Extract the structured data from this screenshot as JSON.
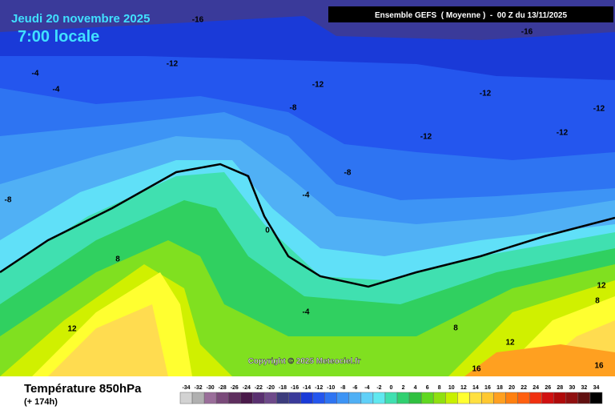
{
  "header": {
    "date": "Jeudi 20 novembre 2025",
    "time": "7:00 locale",
    "model": "Ensemble GEFS  ( Moyenne )  -  00 Z du 13/11/2025"
  },
  "copyright": "Copyright © 2025 Meteociel.fr",
  "contour_labels": [
    -16,
    -16,
    -12,
    -4,
    -4,
    -12,
    -12,
    -12,
    -8,
    -12,
    -12,
    -8,
    -4,
    -8,
    0,
    8,
    -4,
    12,
    8,
    12,
    8,
    12,
    16,
    16
  ],
  "footer": {
    "variable": "Température 850hPa",
    "lead": "(+ 174h)"
  },
  "legend": {
    "values": [
      -34,
      -32,
      -30,
      -28,
      -26,
      -24,
      -22,
      -20,
      -18,
      -16,
      -14,
      -12,
      -10,
      -8,
      -6,
      -4,
      -2,
      0,
      2,
      4,
      6,
      8,
      10,
      12,
      14,
      16,
      18,
      20,
      22,
      24,
      26,
      28,
      30,
      32,
      34
    ],
    "colors": [
      "#d2d2d2",
      "#b0b0b0",
      "#9a6e9a",
      "#7a4a7a",
      "#5e2e5e",
      "#4a1a4a",
      "#5a3070",
      "#6e4a8a",
      "#3c3c7c",
      "#3a3a9a",
      "#1a3ad8",
      "#2456ee",
      "#2e74f2",
      "#3d94f5",
      "#50b0f5",
      "#60d0f8",
      "#60e8f0",
      "#40e0b0",
      "#30d070",
      "#30c040",
      "#60d820",
      "#90e010",
      "#c8f000",
      "#ffff30",
      "#ffe040",
      "#ffc830",
      "#ffa020",
      "#ff8010",
      "#ff6010",
      "#f03010",
      "#d01010",
      "#b00a0a",
      "#901010",
      "#601010",
      "#000000"
    ]
  }
}
